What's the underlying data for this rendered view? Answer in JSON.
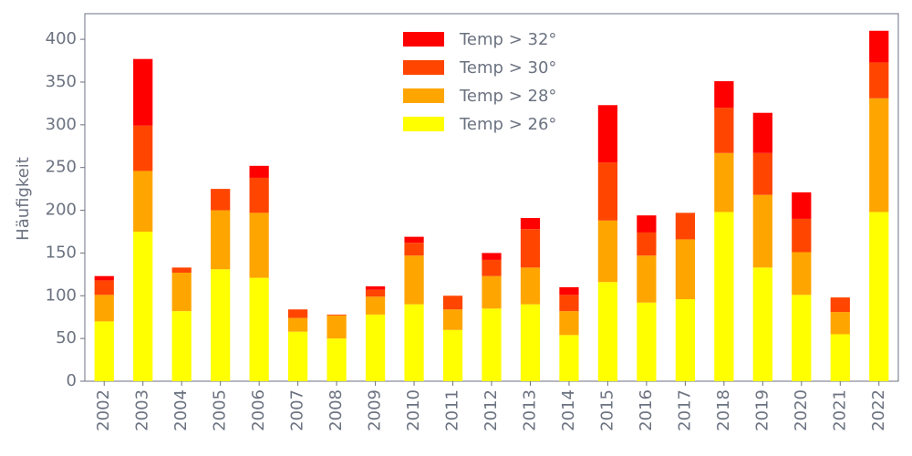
{
  "chart_data": {
    "type": "stacked_bar",
    "y_label": "Häufigkeit",
    "categories": [
      "2002",
      "2003",
      "2004",
      "2005",
      "2006",
      "2007",
      "2008",
      "2009",
      "2010",
      "2011",
      "2012",
      "2013",
      "2014",
      "2015",
      "2016",
      "2017",
      "2018",
      "2019",
      "2020",
      "2021",
      "2022"
    ],
    "series": [
      {
        "name": "Temp > 26°",
        "color": "#ffff00",
        "values": [
          70,
          175,
          82,
          131,
          121,
          58,
          50,
          78,
          90,
          60,
          85,
          90,
          54,
          116,
          92,
          96,
          198,
          133,
          101,
          55,
          198
        ]
      },
      {
        "name": "Temp > 28°",
        "color": "#ffa500",
        "values": [
          31,
          71,
          45,
          69,
          76,
          16,
          27,
          21,
          57,
          24,
          38,
          43,
          28,
          72,
          55,
          70,
          69,
          85,
          50,
          26,
          133
        ]
      },
      {
        "name": "Temp > 30°",
        "color": "#ff4500",
        "values": [
          17,
          53,
          6,
          25,
          41,
          10,
          1,
          8,
          15,
          16,
          19,
          45,
          19,
          68,
          27,
          31,
          53,
          49,
          39,
          17,
          42
        ]
      },
      {
        "name": "Temp > 32°",
        "color": "#ff0000",
        "values": [
          5,
          78,
          0,
          0,
          14,
          0,
          0,
          4,
          7,
          0,
          8,
          13,
          9,
          67,
          20,
          0,
          31,
          47,
          31,
          0,
          37
        ]
      }
    ],
    "ylim": [
      0,
      430
    ],
    "yticks": [
      0,
      50,
      100,
      150,
      200,
      250,
      300,
      350,
      400
    ],
    "legend": "upper center"
  }
}
